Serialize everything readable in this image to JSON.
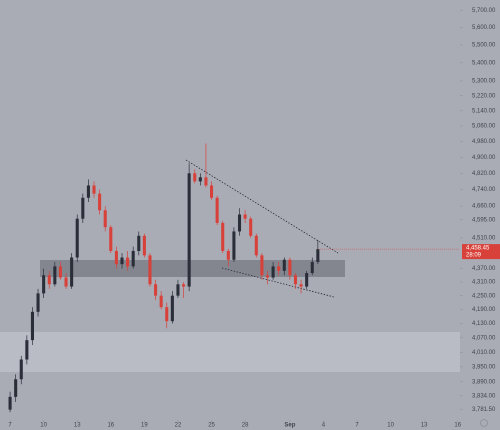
{
  "chart_data": {
    "type": "candlestick",
    "log_scale": true,
    "up_color": "#2a2e39",
    "down_color": "#d8403a",
    "x": [
      0,
      0.5,
      1,
      1.5,
      2,
      2.5,
      3,
      3.5,
      4,
      4.5,
      5,
      5.5,
      6,
      6.5,
      7,
      7.5,
      8,
      8.5,
      9,
      9.5,
      10,
      10.5,
      11,
      11.5,
      12,
      12.5,
      13,
      13.5,
      14,
      14.5,
      15,
      15.5,
      16,
      16.5,
      17,
      17.5,
      18,
      18.5,
      19,
      19.5,
      20,
      20.5,
      21,
      21.5,
      22,
      22.5,
      23,
      23.5,
      24,
      24.5,
      25,
      25.5,
      26,
      26.5,
      27,
      27.5
    ],
    "open": [
      3780,
      3830,
      3900,
      3980,
      4060,
      4180,
      4260,
      4340,
      4300,
      4380,
      4330,
      4290,
      4420,
      4600,
      4700,
      4760,
      4720,
      4640,
      4560,
      4450,
      4390,
      4420,
      4380,
      4450,
      4520,
      4430,
      4300,
      4250,
      4200,
      4140,
      4250,
      4300,
      4290,
      4820,
      4780,
      4800,
      4760,
      4700,
      4580,
      4450,
      4410,
      4540,
      4620,
      4600,
      4520,
      4430,
      4340,
      4330,
      4380,
      4360,
      4410,
      4340,
      4300,
      4290,
      4350,
      4400
    ],
    "high": [
      3850,
      3920,
      3995,
      4080,
      4200,
      4280,
      4370,
      4360,
      4400,
      4400,
      4350,
      4440,
      4620,
      4720,
      4790,
      4780,
      4740,
      4660,
      4570,
      4470,
      4440,
      4450,
      4470,
      4540,
      4530,
      4440,
      4320,
      4270,
      4220,
      4270,
      4320,
      4310,
      4870,
      4840,
      4820,
      4970,
      4780,
      4710,
      4590,
      4460,
      4560,
      4650,
      4640,
      4610,
      4530,
      4440,
      4360,
      4400,
      4400,
      4420,
      4420,
      4350,
      4320,
      4360,
      4420,
      4500
    ],
    "low": [
      3770,
      3810,
      3880,
      3960,
      4040,
      4160,
      4240,
      4280,
      4290,
      4320,
      4280,
      4280,
      4400,
      4580,
      4680,
      4700,
      4620,
      4540,
      4440,
      4370,
      4370,
      4360,
      4370,
      4430,
      4420,
      4290,
      4230,
      4190,
      4110,
      4130,
      4240,
      4240,
      4270,
      4770,
      4760,
      4750,
      4690,
      4570,
      4440,
      4380,
      4400,
      4520,
      4580,
      4510,
      4420,
      4320,
      4300,
      4320,
      4340,
      4340,
      4320,
      4280,
      4260,
      4280,
      4340,
      4390
    ],
    "close": [
      3830,
      3900,
      3980,
      4060,
      4180,
      4260,
      4340,
      4300,
      4380,
      4330,
      4290,
      4420,
      4600,
      4700,
      4760,
      4720,
      4640,
      4560,
      4450,
      4390,
      4420,
      4380,
      4450,
      4520,
      4430,
      4300,
      4250,
      4200,
      4140,
      4250,
      4300,
      4290,
      4820,
      4780,
      4800,
      4760,
      4700,
      4580,
      4450,
      4410,
      4540,
      4620,
      4600,
      4520,
      4430,
      4340,
      4330,
      4380,
      4360,
      4410,
      4340,
      4300,
      4290,
      4350,
      4400,
      4458.45
    ],
    "close_label": "4,458.45",
    "countdown": "28:09",
    "xlim": [
      -0.9,
      40.2
    ],
    "xticks": [
      {
        "value": 0,
        "label": "7"
      },
      {
        "value": 3,
        "label": "10"
      },
      {
        "value": 6,
        "label": "13"
      },
      {
        "value": 9,
        "label": "16"
      },
      {
        "value": 12,
        "label": "19"
      },
      {
        "value": 15,
        "label": "22"
      },
      {
        "value": 18,
        "label": "25"
      },
      {
        "value": 21,
        "label": "28"
      },
      {
        "value": 25,
        "label": "Sep"
      },
      {
        "value": 28,
        "label": "4"
      },
      {
        "value": 31,
        "label": "7"
      },
      {
        "value": 34,
        "label": "10"
      },
      {
        "value": 37,
        "label": "13"
      },
      {
        "value": 40,
        "label": "16"
      }
    ],
    "ylim": [
      3740,
      5760
    ],
    "yticks": [
      {
        "value": 5700,
        "label": "5,700.00"
      },
      {
        "value": 5600,
        "label": "5,600.00"
      },
      {
        "value": 5500,
        "label": "5,500.00"
      },
      {
        "value": 5400,
        "label": "5,400.00"
      },
      {
        "value": 5300,
        "label": "5,300.00"
      },
      {
        "value": 5220,
        "label": "5,220.00"
      },
      {
        "value": 5140,
        "label": "5,140.00"
      },
      {
        "value": 5060,
        "label": "5,060.00"
      },
      {
        "value": 4980,
        "label": "4,980.00"
      },
      {
        "value": 4900,
        "label": "4,900.00"
      },
      {
        "value": 4820,
        "label": "4,820.00"
      },
      {
        "value": 4740,
        "label": "4,740.00"
      },
      {
        "value": 4660,
        "label": "4,660.00"
      },
      {
        "value": 4595,
        "label": "4,595.00"
      },
      {
        "value": 4510,
        "label": "4,510.00"
      },
      {
        "value": 4370,
        "label": "4,370.00"
      },
      {
        "value": 4310,
        "label": "4,310.00"
      },
      {
        "value": 4250,
        "label": "4,250.00"
      },
      {
        "value": 4190,
        "label": "4,190.00"
      },
      {
        "value": 4130,
        "label": "4,130.00"
      },
      {
        "value": 4070,
        "label": "4,070.00"
      },
      {
        "value": 4010,
        "label": "4,010.00"
      },
      {
        "value": 3950,
        "label": "3,950.00"
      },
      {
        "value": 3890,
        "label": "3,890.00"
      },
      {
        "value": 3834,
        "label": "3,834.00"
      },
      {
        "value": 3781.5,
        "label": "3,781.50"
      }
    ]
  }
}
